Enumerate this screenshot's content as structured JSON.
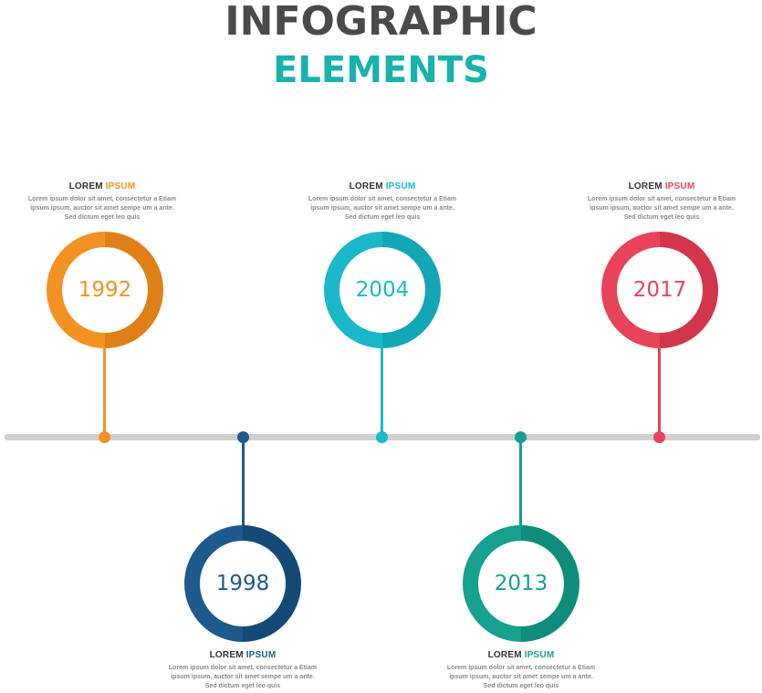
{
  "title": {
    "line1": "INFOGRAPHIC",
    "line2": "ELEMENTS"
  },
  "milestones": [
    {
      "year": "1992",
      "heading_a": "LOREM",
      "heading_b": "IPSUM",
      "color": "#f39223",
      "shade": "#e07f18",
      "text": "Lorem ipsum dolor sit amet, consectetur a Etiam ipsum ipsum, auctor sit amet sempe um a ante. Sed dictum eget leo quis"
    },
    {
      "year": "1998",
      "heading_a": "LOREM",
      "heading_b": "IPSUM",
      "color": "#1e5a8c",
      "shade": "#154a77",
      "text": "Lorem ipsum dolor sit amet, consectetur a Etiam ipsum ipsum, auctor sit amet sempe um a ante. Sed dictum eget leo quis"
    },
    {
      "year": "2004",
      "heading_a": "LOREM",
      "heading_b": "IPSUM",
      "color": "#1ab8c9",
      "shade": "#12a6b6",
      "text": "Lorem ipsum dolor sit amet, consectetur a Etiam ipsum ipsum, auctor sit amet sempe um a ante. Sed dictum eget leo quis"
    },
    {
      "year": "2013",
      "heading_a": "LOREM",
      "heading_b": "IPSUM",
      "color": "#16a08e",
      "shade": "#0f8d7c",
      "text": "Lorem ipsum dolor sit amet, consectetur a Etiam ipsum ipsum, auctor sit amet sempe um a ante. Sed dictum eget leo quis"
    },
    {
      "year": "2017",
      "heading_a": "LOREM",
      "heading_b": "IPSUM",
      "color": "#e8435a",
      "shade": "#d3364c",
      "text": "Lorem ipsum dolor sit amet, consectetur a Etiam ipsum ipsum, auctor sit amet sempe um a ante. Sed dictum eget leo quis"
    }
  ]
}
